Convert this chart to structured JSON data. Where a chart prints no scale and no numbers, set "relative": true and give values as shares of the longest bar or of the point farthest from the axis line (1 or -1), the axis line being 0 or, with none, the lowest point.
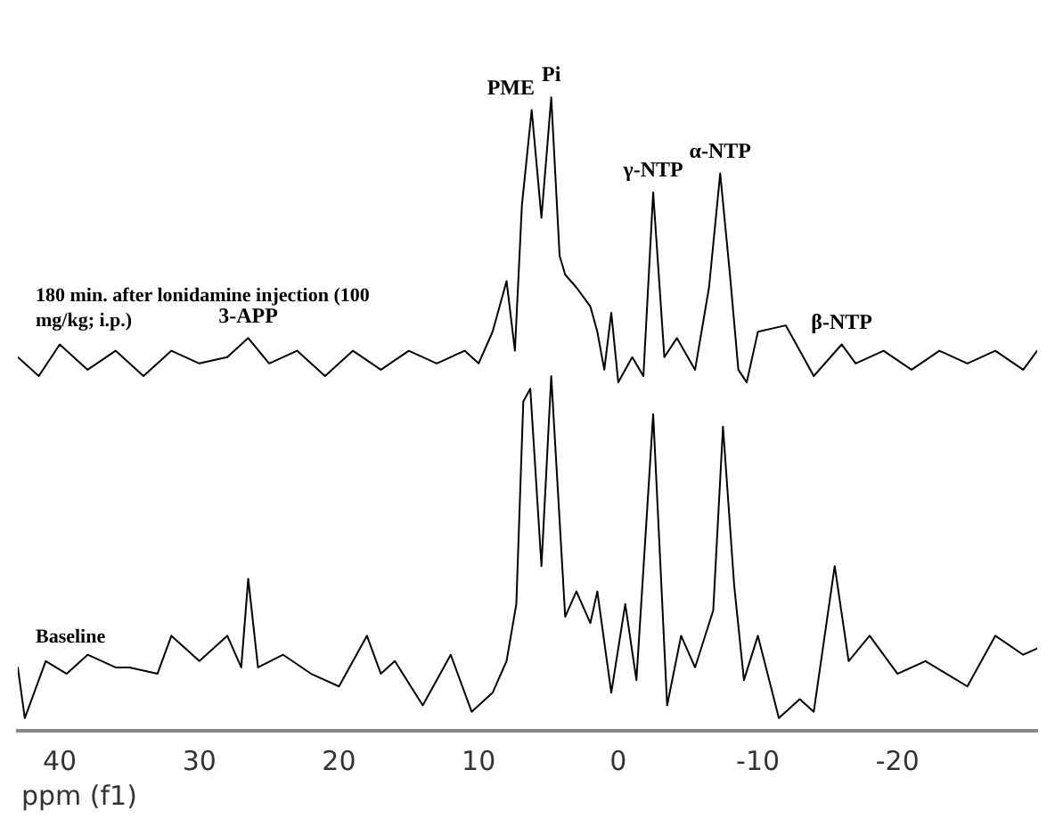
{
  "chart_data": {
    "type": "line",
    "relative": true,
    "xlabel": "ppm (f1)",
    "xlim": [
      43,
      -30
    ],
    "xticks": [
      40,
      30,
      20,
      10,
      0,
      -10,
      -20
    ],
    "grid": false,
    "legend": false,
    "marker": "none",
    "line_style": "solid",
    "series": [
      {
        "name": "180 min. after lonidamine injection (100 mg/kg; i.p.)",
        "color": "#000000",
        "x": [
          43,
          41.5,
          40,
          38,
          36,
          34,
          32,
          30,
          28,
          26.5,
          25,
          23,
          21,
          19,
          17,
          15,
          13,
          11,
          10,
          9,
          8,
          7.4,
          6.9,
          6.2,
          5.5,
          4.8,
          4.2,
          3.8,
          3,
          2,
          1.5,
          1,
          0.5,
          0,
          -1,
          -1.8,
          -2.5,
          -3.3,
          -4.2,
          -5.5,
          -6.5,
          -7.3,
          -8,
          -8.6,
          -9.2,
          -10,
          -12,
          -13,
          -14,
          -16,
          -17,
          -19,
          -21,
          -23,
          -25,
          -27,
          -29,
          -30
        ],
        "values": [
          0.59,
          0.56,
          0.61,
          0.57,
          0.6,
          0.56,
          0.6,
          0.58,
          0.59,
          0.62,
          0.58,
          0.6,
          0.56,
          0.6,
          0.57,
          0.6,
          0.58,
          0.6,
          0.58,
          0.63,
          0.71,
          0.6,
          0.83,
          0.98,
          0.81,
          1.0,
          0.75,
          0.72,
          0.7,
          0.67,
          0.63,
          0.57,
          0.66,
          0.55,
          0.59,
          0.56,
          0.85,
          0.59,
          0.62,
          0.57,
          0.7,
          0.88,
          0.72,
          0.57,
          0.55,
          0.63,
          0.64,
          0.6,
          0.56,
          0.61,
          0.58,
          0.6,
          0.57,
          0.6,
          0.58,
          0.6,
          0.57,
          0.6
        ]
      },
      {
        "name": "Baseline",
        "color": "#000000",
        "x": [
          43,
          42.5,
          41,
          39.5,
          38,
          36,
          35,
          33,
          32,
          30,
          28,
          27,
          26.5,
          25.8,
          24,
          22,
          20,
          18,
          17,
          16,
          14,
          12,
          10.5,
          9,
          8,
          7.3,
          6.8,
          6.3,
          5.5,
          4.8,
          3.8,
          3,
          2,
          1.5,
          0.5,
          -0.5,
          -1.3,
          -2.5,
          -3.5,
          -4.5,
          -5.5,
          -6.8,
          -7.5,
          -8.3,
          -9,
          -10,
          -11.5,
          -13,
          -14,
          -15.5,
          -16.5,
          -18,
          -20,
          -22,
          -25,
          -27,
          -29,
          -30
        ],
        "values": [
          0.1,
          0.02,
          0.11,
          0.09,
          0.12,
          0.1,
          0.1,
          0.09,
          0.15,
          0.11,
          0.15,
          0.1,
          0.24,
          0.1,
          0.12,
          0.09,
          0.07,
          0.15,
          0.09,
          0.11,
          0.04,
          0.12,
          0.03,
          0.06,
          0.11,
          0.2,
          0.52,
          0.54,
          0.26,
          0.56,
          0.18,
          0.22,
          0.17,
          0.22,
          0.06,
          0.2,
          0.08,
          0.5,
          0.04,
          0.15,
          0.1,
          0.19,
          0.48,
          0.23,
          0.08,
          0.15,
          0.02,
          0.05,
          0.03,
          0.26,
          0.11,
          0.15,
          0.09,
          0.11,
          0.07,
          0.15,
          0.12,
          0.13
        ]
      }
    ],
    "annotations": [
      {
        "text": "3-APP",
        "x": 26.5,
        "y": 0.62
      },
      {
        "text": "PME",
        "x": 6.2,
        "y": 0.98
      },
      {
        "text": "Pi",
        "x": 4.8,
        "y": 1.0
      },
      {
        "text": "γ-NTP",
        "x": -2.5,
        "y": 0.85
      },
      {
        "text": "α-NTP",
        "x": -7.3,
        "y": 0.88
      },
      {
        "text": "β-NTP",
        "x": -16,
        "y": 0.61
      }
    ]
  }
}
